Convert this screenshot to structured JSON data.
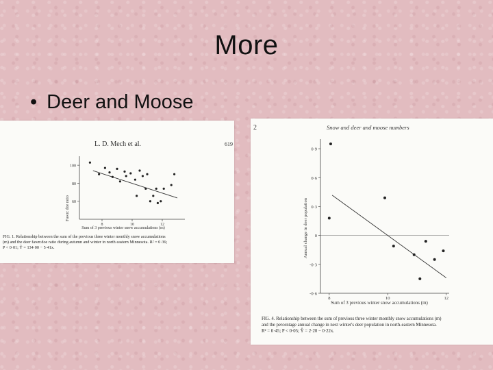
{
  "slide": {
    "title": "More",
    "bullet_text": "Deer and Moose",
    "background_color": "#e2bcc0"
  },
  "figure_left": {
    "header_author": "L. D. Mech et al.",
    "header_page": "619",
    "ylabel": "Fawn: doe ratio",
    "xlabel": "Sum of 3 previous winter snow accumulations (m)",
    "caption_line1": "FIG. 1. Relationship between the sum of the previous three winter monthly snow accumulations",
    "caption_line2": "(m) and the deer fawn:doe ratio during autumn and winter in north eastern Minnesota. R² = 0·36;",
    "caption_line3": "P < 0·01; Ŷ = 134·00 − 5·41x."
  },
  "figure_right": {
    "header_page": "2",
    "header_title": "Snow and deer and moose numbers",
    "ylabel": "Annual change in deer population",
    "xlabel": "Sum of 3 previous winter snow accumulations (m)",
    "caption_line1": "FIG. 4. Relationship between the sum of previous three winter monthly snow accumulations (m)",
    "caption_line2": "and the percentage annual change in next winter's deer population in north-eastern Minnesota.",
    "caption_line3": "R² = 0·45; P < 0·05; Ŷ = 2·20 − 0·22x."
  },
  "chart_data": [
    {
      "type": "scatter",
      "title": "",
      "xlabel": "Sum of 3 previous winter snow accumulations (m)",
      "ylabel": "Fawn: doe ratio",
      "x_ticks": [
        "8",
        "10",
        "12"
      ],
      "y_ticks": [
        "100",
        "80",
        "60"
      ],
      "xlim": [
        6.5,
        13.5
      ],
      "ylim": [
        40,
        110
      ],
      "points": [
        {
          "x": 7.2,
          "y": 103
        },
        {
          "x": 7.8,
          "y": 90
        },
        {
          "x": 8.2,
          "y": 97
        },
        {
          "x": 8.5,
          "y": 92
        },
        {
          "x": 8.7,
          "y": 87
        },
        {
          "x": 9.0,
          "y": 96
        },
        {
          "x": 9.2,
          "y": 82
        },
        {
          "x": 9.5,
          "y": 93
        },
        {
          "x": 9.6,
          "y": 88
        },
        {
          "x": 9.9,
          "y": 91
        },
        {
          "x": 10.2,
          "y": 84
        },
        {
          "x": 10.3,
          "y": 66
        },
        {
          "x": 10.5,
          "y": 94
        },
        {
          "x": 10.7,
          "y": 88
        },
        {
          "x": 10.9,
          "y": 74
        },
        {
          "x": 11.0,
          "y": 90
        },
        {
          "x": 11.2,
          "y": 60
        },
        {
          "x": 11.4,
          "y": 66
        },
        {
          "x": 11.6,
          "y": 74
        },
        {
          "x": 11.7,
          "y": 58
        },
        {
          "x": 11.9,
          "y": 60
        },
        {
          "x": 12.1,
          "y": 74
        },
        {
          "x": 12.6,
          "y": 78
        },
        {
          "x": 12.8,
          "y": 90
        }
      ],
      "trendline": {
        "intercept": 134.0,
        "slope": -5.41
      }
    },
    {
      "type": "scatter",
      "title": "",
      "xlabel": "Sum of 3 previous winter snow accumulations (m)",
      "ylabel": "Annual change in deer population",
      "x_ticks": [
        "8",
        "10",
        "12"
      ],
      "y_ticks": [
        "0·9",
        "0·6",
        "0·3",
        "0",
        "-0·3",
        "-0·6"
      ],
      "xlim": [
        7.7,
        12.1
      ],
      "ylim": [
        -0.6,
        1.0
      ],
      "points": [
        {
          "x": 8.05,
          "y": 0.95
        },
        {
          "x": 8.0,
          "y": 0.18
        },
        {
          "x": 9.9,
          "y": 0.39
        },
        {
          "x": 10.2,
          "y": -0.11
        },
        {
          "x": 10.9,
          "y": -0.2
        },
        {
          "x": 11.1,
          "y": -0.45
        },
        {
          "x": 11.3,
          "y": -0.06
        },
        {
          "x": 11.6,
          "y": -0.25
        },
        {
          "x": 11.9,
          "y": -0.16
        }
      ],
      "trendline": {
        "intercept": 2.2,
        "slope": -0.22
      }
    }
  ]
}
